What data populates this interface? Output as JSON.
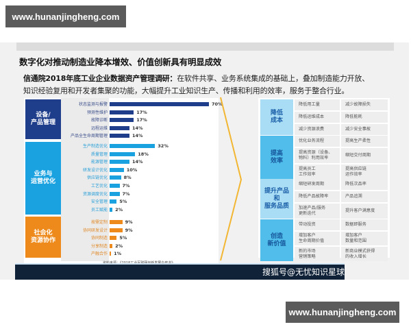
{
  "watermarks": {
    "top": "www.hunanjingheng.com",
    "bottom": "www.hunanjingheng.com"
  },
  "slide": {
    "title": "数字化对推动制造业降本增效、价值创新具有明显成效",
    "subtitle_bold": "信通院2018年底工业企业数据资产管理调研：",
    "subtitle_rest_line1": "在软件共享、业务系统集成的基础上，叠加制造能力开放、",
    "subtitle_line2": "知识经验复用和开发者集聚的功能，大幅提升工业知识生产、传播和利用的效率，服务于整合行业。",
    "source": "资料来源：《2018工业互联网创新发展白皮书》",
    "footer_credit": "搜狐号@无忧知识星球"
  },
  "colors": {
    "navy": "#1e3e8c",
    "sky": "#1aa2e0",
    "orange": "#ee8a1b",
    "chevron": "#f2b632",
    "footer": "#0f2238"
  },
  "chart_data": {
    "type": "bar",
    "orientation": "horizontal",
    "unit": "%",
    "groups": [
      {
        "name": "设备/产品管理",
        "color": "#1e3e8c",
        "categories": [
          "状态监测与报警",
          "预测性维护",
          "故障诊断",
          "远程运维",
          "产品全生命周期管理"
        ],
        "values": [
          70,
          17,
          17,
          14,
          14
        ]
      },
      {
        "name": "业务与运营优化",
        "color": "#1aa2e0",
        "categories": [
          "生产制造优化",
          "质量管理",
          "能源管理",
          "研发设计优化",
          "供应链优化",
          "工艺优化",
          "资源调度优化",
          "安全管理",
          "员工赋能"
        ],
        "values": [
          32,
          18,
          14,
          10,
          8,
          7,
          7,
          5,
          2
        ]
      },
      {
        "name": "社会化资源协作",
        "color": "#ee8a1b",
        "categories": [
          "按需定制",
          "协同研发设计",
          "协同制造",
          "分享制造",
          "产融合作"
        ],
        "values": [
          9,
          9,
          5,
          2,
          1
        ]
      }
    ],
    "xlim": [
      0,
      70
    ],
    "grid": false,
    "legend": "none"
  },
  "chart_labels": {
    "g1": {
      "cat": "设备/\n产品管理",
      "rows": [
        {
          "label": "状态监测与报警",
          "value": "70%"
        },
        {
          "label": "预测性维护",
          "value": "17%"
        },
        {
          "label": "故障诊断",
          "value": "17%"
        },
        {
          "label": "远程运维",
          "value": "14%"
        },
        {
          "label": "产品全生命周期管理",
          "value": "14%"
        }
      ]
    },
    "g2": {
      "cat": "业务与\n运营优化",
      "rows": [
        {
          "label": "生产制造优化",
          "value": "32%"
        },
        {
          "label": "质量管理",
          "value": "18%"
        },
        {
          "label": "能源管理",
          "value": "14%"
        },
        {
          "label": "研发设计优化",
          "value": "10%"
        },
        {
          "label": "供应链优化",
          "value": "8%"
        },
        {
          "label": "工艺优化",
          "value": "7%"
        },
        {
          "label": "资源调度优化",
          "value": "7%"
        },
        {
          "label": "安全管理",
          "value": "5%"
        },
        {
          "label": "员工赋能",
          "value": "2%"
        }
      ]
    },
    "g3": {
      "cat": "社会化\n资源协作",
      "rows": [
        {
          "label": "按需定制",
          "value": "9%"
        },
        {
          "label": "协同研发设计",
          "value": "9%"
        },
        {
          "label": "协同制造",
          "value": "5%"
        },
        {
          "label": "分享制造",
          "value": "2%"
        },
        {
          "label": "产融合作",
          "value": "1%"
        }
      ]
    }
  },
  "benefits": [
    {
      "head": "降低\n成本",
      "cells": [
        [
          "降低用工量",
          "减少故障损失"
        ],
        [
          "降低运维成本",
          "降低能耗"
        ],
        [
          "减少资源浪费",
          "减少安全事故"
        ]
      ]
    },
    {
      "head": "提高\n效率",
      "cells": [
        [
          "优化业务流程",
          "提高生产柔性"
        ],
        [
          "提高资源（设备、\n物料）利用效率",
          "缩短交付周期"
        ],
        [
          "提高员工\n工作效率",
          "提高供应链\n运作效率"
        ]
      ]
    },
    {
      "head": "提升产品\n和\n服务品质",
      "cells": [
        [
          "缩短研发周期",
          "降低次品率"
        ],
        [
          "降低产品故障率",
          "产品追溯"
        ],
        [
          "加速产品/服务\n更新迭代",
          "提升客户满意度"
        ]
      ]
    },
    {
      "head": "创造\n新价值",
      "cells": [
        [
          "带动投资",
          "数据即服务"
        ],
        [
          "增加客户\n生命周期价值",
          "增加客户\n数量和范围"
        ],
        [
          "新的市场\n营销策略",
          "新商业模式获得\n的收入增长"
        ]
      ]
    }
  ]
}
